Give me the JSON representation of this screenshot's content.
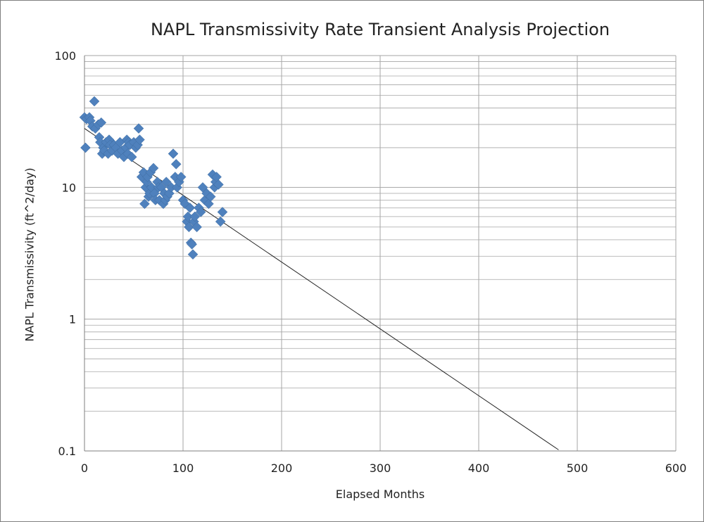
{
  "chart_data": {
    "type": "scatter",
    "title": "NAPL Transmissivity Rate Transient Analysis Projection",
    "xlabel": "Elapsed Months",
    "ylabel": "NAPL Transmissivity (ft^2/day)",
    "xlim": [
      0,
      600
    ],
    "ylim": [
      0.1,
      100
    ],
    "y_scale": "log",
    "x_ticks": [
      0,
      100,
      200,
      300,
      400,
      500,
      600
    ],
    "x_tick_labels": [
      "0",
      "100",
      "200",
      "300",
      "400",
      "500",
      "600"
    ],
    "y_ticks": [
      0.1,
      1,
      10,
      100
    ],
    "y_tick_labels": [
      "0.1",
      "1",
      "10",
      "100"
    ],
    "grid": true,
    "legend": "none",
    "marker": "diamond",
    "colors": {
      "points": "#4f81bd",
      "points_edge": "#3c6a9f",
      "trendline": "#222222",
      "grid": "#a6a6a6"
    },
    "series": [
      {
        "x": [
          0,
          1,
          2,
          5,
          6,
          8,
          10,
          11,
          14,
          15,
          16,
          17,
          18,
          19,
          20,
          22,
          24,
          25,
          26,
          28,
          30,
          32,
          34,
          36,
          38,
          40,
          42,
          43,
          44,
          45,
          46,
          48,
          50,
          52,
          54,
          55,
          56,
          58,
          60,
          61,
          62,
          63,
          64,
          65,
          66,
          67,
          68,
          70,
          71,
          72,
          74,
          75,
          76,
          78,
          80,
          81,
          82,
          83,
          84,
          86,
          88,
          90,
          92,
          93,
          94,
          96,
          98,
          100,
          102,
          104,
          105,
          106,
          107,
          108,
          109,
          110,
          111,
          112,
          114,
          116,
          118,
          120,
          122,
          124,
          126,
          128,
          130,
          132,
          133,
          134,
          136,
          138,
          140
        ],
        "y": [
          34,
          20,
          33,
          34,
          32,
          29,
          45,
          28,
          30,
          24,
          22,
          31,
          18,
          20,
          19,
          22,
          18,
          23,
          21,
          19,
          21,
          20,
          18,
          22,
          19,
          17,
          20,
          23,
          18,
          22,
          21,
          17,
          22,
          20,
          21,
          28,
          23,
          12,
          13,
          7.5,
          10,
          11,
          12,
          8.5,
          9,
          13,
          10,
          14,
          9,
          8,
          11,
          10,
          8,
          10,
          7.5,
          9,
          8,
          11,
          8.5,
          9,
          10,
          18,
          12,
          15,
          10,
          11,
          12,
          8,
          7.5,
          5.5,
          6,
          5,
          7,
          3.8,
          3.7,
          3.1,
          5.5,
          6,
          5,
          7,
          6.5,
          10,
          8,
          9,
          7.5,
          8.5,
          12.5,
          10,
          11,
          12,
          10.5,
          5.5,
          6.5
        ]
      }
    ],
    "trendline": {
      "x": [
        0,
        481
      ],
      "y": [
        28,
        0.102
      ]
    }
  }
}
